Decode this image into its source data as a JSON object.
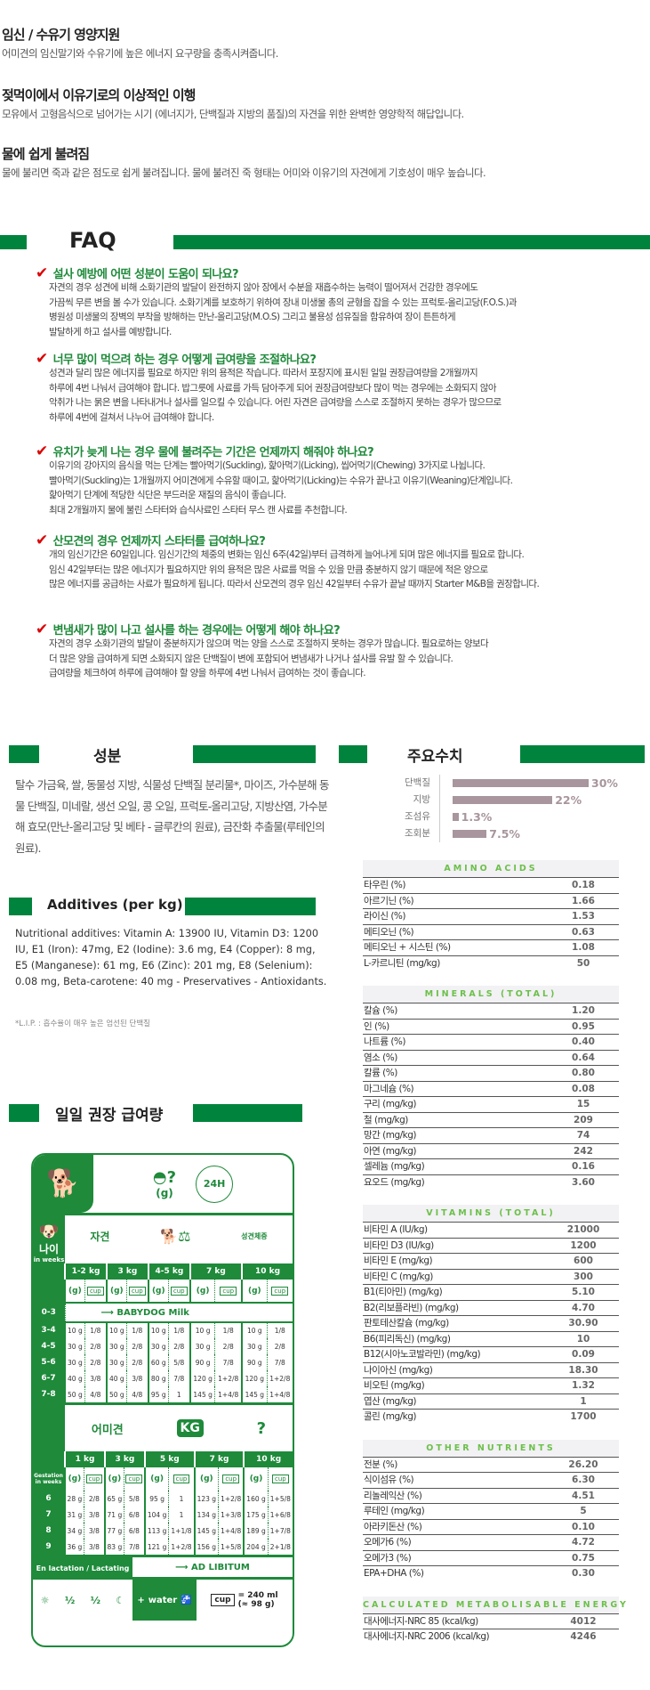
{
  "features": [
    {
      "title": "임신 / 수유기 영양지원",
      "body": "어미견의 임신말기와 수유기에 높은 에너지 요구량을 충족시켜줍니다."
    },
    {
      "title": "젖먹이에서 이유기로의 이상적인 이행",
      "body": "모유에서 고형음식으로 넘어가는 시기 (에너지가, 단백질과 지방의 품질)의 자견을 위한 완벽한 영양학적 해답입니다."
    },
    {
      "title": "물에 쉽게 불려짐",
      "body": "물에 불리면 죽과 같은 점도로 쉽게 불려집니다. 물에 불려진 죽 형태는 어미와 이유기의 자견에게 기호성이 매우 높습니다."
    }
  ],
  "faq": {
    "title": "FAQ",
    "items": [
      {
        "q": "설사 예방에 어떤 성분이 도움이 되나요?",
        "lines": [
          "자견의 경우 성견에 비해 소화기관의 발달이 완전하지 않아 장에서 수분을 재흡수하는 능력이 떨어져서 건강한 경우에도",
          "가끔씩 무른 변을 볼 수가 있습니다. 소화기계를 보호하기 위하여 장내 미생물 총의 균형을 잡을 수 있는 프럭토-올리고당(F.O.S.)과",
          "병원성 미생물의 장벽의 부착을 방해하는 만난-올리고당(M.O.S) 그리고 불용성 섬유질을 함유하여 장이 튼튼하게",
          "발달하게 하고 설사를 예방합니다."
        ]
      },
      {
        "q": "너무 많이 먹으려 하는 경우 어떻게 급여량을 조절하나요?",
        "lines": [
          "성견과 달리 많은 에너지를 필요로 하지만 위의 용적은 작습니다. 따라서 포장지에 표시된 일일 권장급여량을 2개월까지",
          "하루에 4번 나눠서 급여해야 합니다. 밥그릇에 사료를 가득 담아주게 되어 권장급여량보다 많이 먹는 경우에는 소화되지 않아",
          "악취가 나는 묽은 변을 나타내거나 설사를 일으킬 수 있습니다. 어린 자견은 급여량을 스스로 조절하지 못하는 경우가 많으므로",
          "하루에 4번에 걸쳐서 나누어 급여해야 합니다."
        ]
      },
      {
        "q": "유치가 늦게 나는 경우 물에 불려주는 기간은 언제까지 해줘야 하나요?",
        "lines": [
          "이유기의 강아지의 음식을 먹는 단계는 빨아먹기(Suckling), 핥아먹기(Licking), 씹어먹기(Chewing) 3가지로 나뉩니다.",
          "빨아먹기(Suckling)는 1개월까지 어미견에게 수유할 때이고, 핥아먹기(Licking)는 수유가 끝나고 이유기(Weaning)단계입니다.",
          "핥아먹기 단계에 적당한 식단은 부드러운 재질의 음식이 좋습니다.",
          "최대 2개월까지 물에 불린 스타터와 습식사료인 스타터 무스 캔 사료를 추천합니다."
        ]
      },
      {
        "q": "산모견의 경우 언제까지 스타터를 급여하나요?",
        "lines": [
          "개의 임신기간은 60일입니다. 임신기간의 체중의 변화는 임신 6주(42일)부터 급격하게 늘어나게 되며 많은 에너지를 필요로 합니다.",
          "임신 42일부터는 많은 에너지가 필요하지만 위의 용적은 많은 사료를 먹을 수 있을 만큼 충분하지 않기 때문에 적은 양으로",
          "많은 에너지를 공급하는 사료가 필요하게 됩니다. 따라서 산모견의 경우 임신 42일부터 수유가 끝날 때까지 Starter M&B을 권장합니다."
        ]
      },
      {
        "q": "변냄새가 많이 나고 설사를 하는 경우에는 어떻게 해야 하나요?",
        "lines": [
          "자견의 경우 소화기관의 발달이 충분하지가 않으며 먹는 양을 스스로 조절하지 못하는 경우가 많습니다. 필요로하는 양보다",
          "더 많은 양을 급여하게 되면 소화되지 않은 단백질이 변에 포함되어 변냄새가 나거나 설사를 유발 할 수 있습니다.",
          "급여량을 체크하여 하루에 급여해야 할 양을 하루에 4번 나눠서 급여하는 것이 좋습니다."
        ]
      }
    ]
  },
  "ingredients": {
    "title": "성분",
    "text": "탈수 가금육, 쌀, 동물성 지방, 식물성 단백질 분리물*, 마이즈, 가수분해 동물 단백질, 미네랄, 생선 오일, 콩 오일, 프럭토-올리고당, 지방산염, 가수분해 효모(만난-올리고당 및 베타 - 글루칸의 원료), 금잔화 추출물(루테인의 원료)."
  },
  "additives": {
    "title": "Additives (per kg)",
    "text": "Nutritional additives: Vitamin A: 13900 IU, Vitamin D3: 1200 IU, E1 (Iron): 47mg, E2 (Iodine): 3.6 mg, E4 (Copper): 8 mg, E5 (Manganese): 61 mg, E6 (Zinc): 201 mg, E8 (Selenium): 0.08 mg, Beta-carotene: 40 mg - Preservatives - Antioxidants.",
    "footnote": "*L.I.P. : 흡수율이 매우 높은 엄선된 단백질"
  },
  "key_values": {
    "title": "주요수치",
    "bar_color": "#a8959d",
    "items": [
      {
        "label": "단백질",
        "value": 30,
        "text": "30%"
      },
      {
        "label": "지방",
        "value": 22,
        "text": "22%"
      },
      {
        "label": "조섬유",
        "value": 1.3,
        "text": "1.3%"
      },
      {
        "label": "조회분",
        "value": 7.5,
        "text": "7.5%"
      }
    ]
  },
  "nutrients": [
    {
      "title": "AMINO ACIDS",
      "rows": [
        [
          "타우린 (%)",
          "0.18"
        ],
        [
          "아르기닌 (%)",
          "1.66"
        ],
        [
          "라이신 (%)",
          "1.53"
        ],
        [
          "메티오닌 (%)",
          "0.63"
        ],
        [
          "메티오닌 + 시스틴 (%)",
          "1.08"
        ],
        [
          "L-카르니틴 (mg/kg)",
          "50"
        ]
      ]
    },
    {
      "title": "MINERALS (TOTAL)",
      "rows": [
        [
          "칼슘 (%)",
          "1.20"
        ],
        [
          "인 (%)",
          "0.95"
        ],
        [
          "나트륨 (%)",
          "0.40"
        ],
        [
          "염소 (%)",
          "0.64"
        ],
        [
          "칼륨 (%)",
          "0.80"
        ],
        [
          "마그네슘 (%)",
          "0.08"
        ],
        [
          "구리 (mg/kg)",
          "15"
        ],
        [
          "철 (mg/kg)",
          "209"
        ],
        [
          "망간 (mg/kg)",
          "74"
        ],
        [
          "아연 (mg/kg)",
          "242"
        ],
        [
          "셀레늄 (mg/kg)",
          "0.16"
        ],
        [
          "요오드 (mg/kg)",
          "3.60"
        ]
      ]
    },
    {
      "title": "VITAMINS (TOTAL)",
      "rows": [
        [
          "비타민 A (IU/kg)",
          "21000"
        ],
        [
          "비타민 D3 (IU/kg)",
          "1200"
        ],
        [
          "비타민 E (mg/kg)",
          "600"
        ],
        [
          "비타민 C (mg/kg)",
          "300"
        ],
        [
          "B1(티아민) (mg/kg)",
          "5.10"
        ],
        [
          "B2(리보플라빈) (mg/kg)",
          "4.70"
        ],
        [
          "판토테산칼슘 (mg/kg)",
          "30.90"
        ],
        [
          "B6(피리독신) (mg/kg)",
          "10"
        ],
        [
          "B12(시아노코발라민) (mg/kg)",
          "0.09"
        ],
        [
          "나이아신 (mg/kg)",
          "18.30"
        ],
        [
          "비오틴 (mg/kg)",
          "1.32"
        ],
        [
          "엽산 (mg/kg)",
          "1"
        ],
        [
          "콜린 (mg/kg)",
          "1700"
        ]
      ]
    },
    {
      "title": "OTHER NUTRIENTS",
      "rows": [
        [
          "전분 (%)",
          "26.20"
        ],
        [
          "식이섬유 (%)",
          "6.30"
        ],
        [
          "리놀레익산 (%)",
          "4.51"
        ],
        [
          "루테인 (mg/kg)",
          "5"
        ],
        [
          "아라키돈산 (%)",
          "0.10"
        ],
        [
          "오메가6 (%)",
          "4.72"
        ],
        [
          "오메가3 (%)",
          "0.75"
        ],
        [
          "EPA+DHA (%)",
          "0.30"
        ]
      ]
    },
    {
      "title": "CALCULATED METABOLISABLE ENERGY",
      "rows": [
        [
          "대사에너지-NRC 85 (kcal/kg)",
          "4012"
        ],
        [
          "대사에너지-NRC 2006 (kcal/kg)",
          "4246"
        ]
      ]
    }
  ],
  "feeding": {
    "title": "일일 권장 급여량",
    "g_label": "(g)",
    "h24": "24H",
    "cup": "cup",
    "puppy": {
      "label": "자견",
      "adult_weight": "성견체중",
      "age_label": "나이",
      "in_weeks": "in weeks",
      "weights": [
        "1-2 kg",
        "3 kg",
        "4-5 kg",
        "7 kg",
        "10 kg"
      ],
      "milk_row": {
        "age": "0-3",
        "text": "BABYDOG Milk"
      },
      "rows": [
        [
          "3-4",
          "10 g",
          "1/8",
          "10 g",
          "1/8",
          "10 g",
          "1/8",
          "10 g",
          "1/8",
          "10 g",
          "1/8"
        ],
        [
          "4-5",
          "30 g",
          "2/8",
          "30 g",
          "2/8",
          "30 g",
          "2/8",
          "30 g",
          "2/8",
          "30 g",
          "2/8"
        ],
        [
          "5-6",
          "30 g",
          "2/8",
          "30 g",
          "2/8",
          "60 g",
          "5/8",
          "90 g",
          "7/8",
          "90 g",
          "7/8"
        ],
        [
          "6-7",
          "40 g",
          "3/8",
          "40 g",
          "3/8",
          "80 g",
          "7/8",
          "120 g",
          "1+2/8",
          "120 g",
          "1+2/8"
        ],
        [
          "7-8",
          "50 g",
          "4/8",
          "50 g",
          "4/8",
          "95 g",
          "1",
          "145 g",
          "1+4/8",
          "145 g",
          "1+4/8"
        ]
      ]
    },
    "mother": {
      "label": "어미견",
      "kg": "KG",
      "question": "?",
      "gestation": "Gestation in weeks",
      "weights": [
        "1 kg",
        "3 kg",
        "5 kg",
        "7 kg",
        "10 kg"
      ],
      "rows": [
        [
          "6",
          "28 g",
          "2/8",
          "65 g",
          "5/8",
          "95 g",
          "1",
          "123 g",
          "1+2/8",
          "160 g",
          "1+5/8"
        ],
        [
          "7",
          "31 g",
          "3/8",
          "71 g",
          "6/8",
          "104 g",
          "1",
          "134 g",
          "1+3/8",
          "175 g",
          "1+6/8"
        ],
        [
          "8",
          "34 g",
          "3/8",
          "77 g",
          "6/8",
          "113 g",
          "1+1/8",
          "145 g",
          "1+4/8",
          "189 g",
          "1+7/8"
        ],
        [
          "9",
          "36 g",
          "3/8",
          "83 g",
          "7/8",
          "121 g",
          "1+2/8",
          "156 g",
          "1+5/8",
          "204 g",
          "2+1/8"
        ]
      ]
    },
    "lactating": "En lactation / Lactating",
    "ad_libitum": "AD LIBITUM",
    "half": "½",
    "water": "water",
    "plus": "+",
    "cup_eq1": "= 240 ml",
    "cup_eq2": "(≈ 98 g)"
  }
}
